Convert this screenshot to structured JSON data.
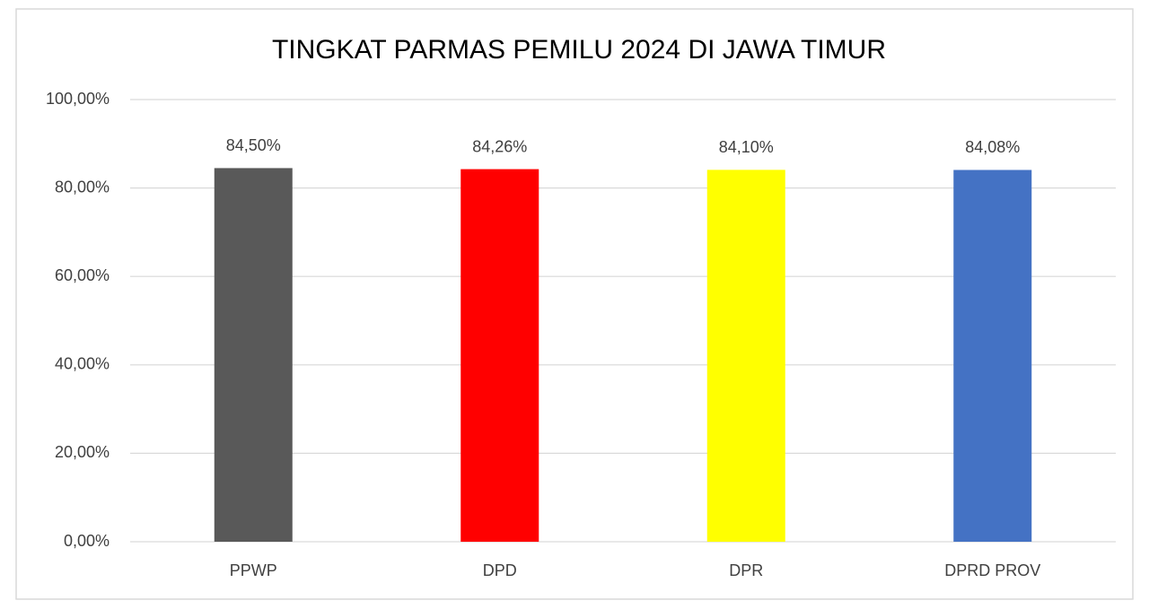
{
  "chart_data": {
    "type": "bar",
    "title": "TINGKAT PARMAS PEMILU 2024 DI JAWA TIMUR",
    "categories": [
      "PPWP",
      "DPD",
      "DPR",
      "DPRD PROV"
    ],
    "values": [
      84.5,
      84.26,
      84.1,
      84.08
    ],
    "value_labels": [
      "84,50%",
      "84,26%",
      "84,10%",
      "84,08%"
    ],
    "colors": [
      "#595959",
      "#ff0000",
      "#ffff00",
      "#4472c4"
    ],
    "ylim": [
      0,
      100
    ],
    "yticks": [
      {
        "value": 0,
        "label": "0,00%"
      },
      {
        "value": 20,
        "label": "20,00%"
      },
      {
        "value": 40,
        "label": "40,00%"
      },
      {
        "value": 60,
        "label": "60,00%"
      },
      {
        "value": 80,
        "label": "80,00%"
      },
      {
        "value": 100,
        "label": "100,00%"
      }
    ],
    "grid": true
  }
}
